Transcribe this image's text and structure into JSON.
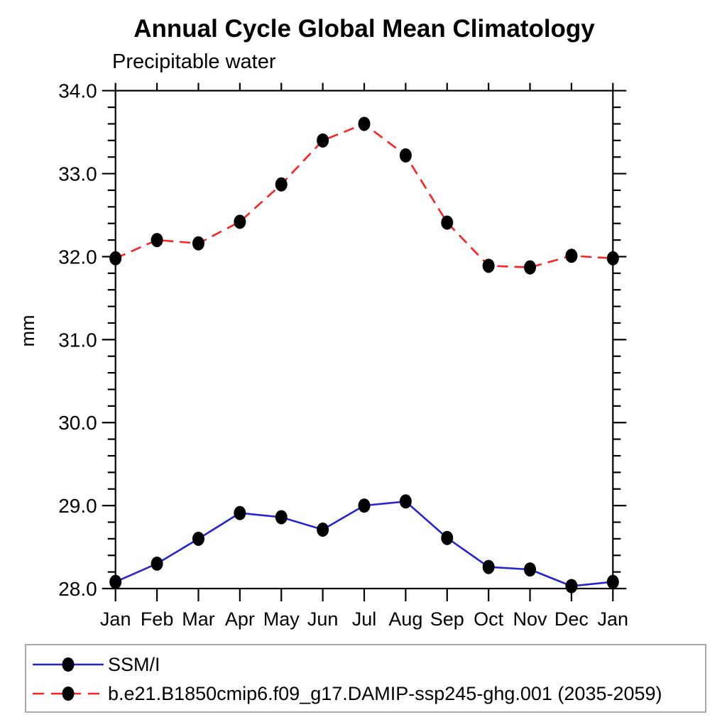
{
  "title": "Annual Cycle Global Mean Climatology",
  "chart_data": {
    "type": "line",
    "title": "Annual Cycle Global Mean Climatology",
    "subtitle": "Precipitable water",
    "xlabel": "",
    "ylabel": "mm",
    "categories": [
      "Jan",
      "Feb",
      "Mar",
      "Apr",
      "May",
      "Jun",
      "Jul",
      "Aug",
      "Sep",
      "Oct",
      "Nov",
      "Dec",
      "Jan"
    ],
    "ylim": [
      28.0,
      34.0
    ],
    "y_major_step": 1.0,
    "y_minor_step": 0.2,
    "y_tick_labels": [
      "28.0",
      "29.0",
      "30.0",
      "31.0",
      "32.0",
      "33.0",
      "34.0"
    ],
    "grid": false,
    "legend_position": "bottom-left-box",
    "series": [
      {
        "name": "SSM/I",
        "line_style": "solid",
        "color": "#2424d6",
        "marker": "filled-circle",
        "marker_color": "#000000",
        "values": [
          28.08,
          28.3,
          28.6,
          28.91,
          28.86,
          28.71,
          29.0,
          29.05,
          28.61,
          28.26,
          28.23,
          28.03,
          28.08
        ]
      },
      {
        "name": "b.e21.B1850cmip6.f09_g17.DAMIP-ssp245-ghg.001 (2035-2059)",
        "line_style": "dashed",
        "color": "#ff2121",
        "marker": "filled-circle",
        "marker_color": "#000000",
        "values": [
          31.98,
          32.2,
          32.16,
          32.42,
          32.87,
          33.4,
          33.6,
          33.22,
          32.41,
          31.89,
          31.87,
          32.01,
          31.98
        ]
      }
    ]
  },
  "colors": {
    "axis": "#000000",
    "background": "#ffffff",
    "legend_border": "#a9a9a9",
    "series_blue": "#2424d6",
    "series_red": "#ff2121",
    "marker_black": "#000000"
  }
}
